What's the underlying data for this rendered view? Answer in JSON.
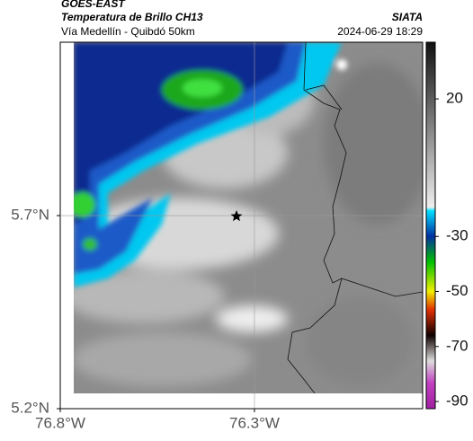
{
  "header": {
    "satellite": "GOES-EAST",
    "product": "Temperatura de Brillo CH13",
    "source": "SIATA",
    "region": "Vía Medellín - Quibdó 50km",
    "datetime": "2024-06-29 18:29"
  },
  "map": {
    "xlim": [
      -76.8,
      -75.867
    ],
    "ylim": [
      5.2,
      6.149
    ],
    "xticks": [
      {
        "value": -76.8,
        "label": "76.8°W"
      },
      {
        "value": -76.3,
        "label": "76.3°W"
      }
    ],
    "yticks": [
      {
        "value": 5.7,
        "label": "5.7°N"
      },
      {
        "value": 5.2,
        "label": "5.2°N"
      }
    ],
    "grid": true
  },
  "colorbar": {
    "lim": [
      40.6,
      -92.6
    ],
    "ticks": [
      20,
      -30,
      -50,
      -70,
      -90
    ]
  }
}
